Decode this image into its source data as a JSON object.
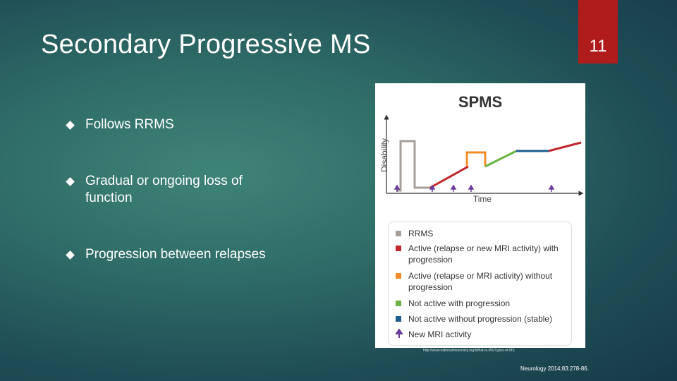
{
  "slide": {
    "title": "Secondary Progressive MS",
    "page_number": "11",
    "colors": {
      "title_box": "#b01c1c",
      "background": "#2f6c68"
    }
  },
  "bullets": [
    {
      "text": "Follows RRMS",
      "icon": "diamond-bullet-icon"
    },
    {
      "text": "Gradual or ongoing loss of function",
      "icon": "diamond-bullet-icon"
    },
    {
      "text": "Progression between relapses",
      "icon": "diamond-bullet-icon"
    }
  ],
  "figure": {
    "title": "SPMS",
    "y_axis_label": "Disability",
    "x_axis_label": "Time",
    "segment_colors": {
      "rrms": "#a69f9a",
      "active_with_progression": "#c0272d",
      "active_without_progression": "#f28c28",
      "not_active_with_progression": "#6ab344",
      "not_active_without_progression": "#1f5d8c",
      "new_mri_activity": "#6a3d9a"
    },
    "legend": [
      {
        "label": "RRMS",
        "color": "#a69f9a",
        "kind": "square"
      },
      {
        "label": "Active (relapse or new MRI activity) with progression",
        "color": "#c0272d",
        "kind": "square"
      },
      {
        "label": "Active (relapse or MRI activity) without progression",
        "color": "#f28c28",
        "kind": "square"
      },
      {
        "label": "Not active with progression",
        "color": "#6ab344",
        "kind": "square"
      },
      {
        "label": "Not active without progression (stable)",
        "color": "#1f5d8c",
        "kind": "square"
      },
      {
        "label": "New MRI activity",
        "color": "#6a3d9a",
        "kind": "arrow"
      }
    ]
  },
  "source_url": "http://www.nationalmssociety.org/What-is-MS/Types-of-MS",
  "citation": "Neurology 2014;83:278-86."
}
